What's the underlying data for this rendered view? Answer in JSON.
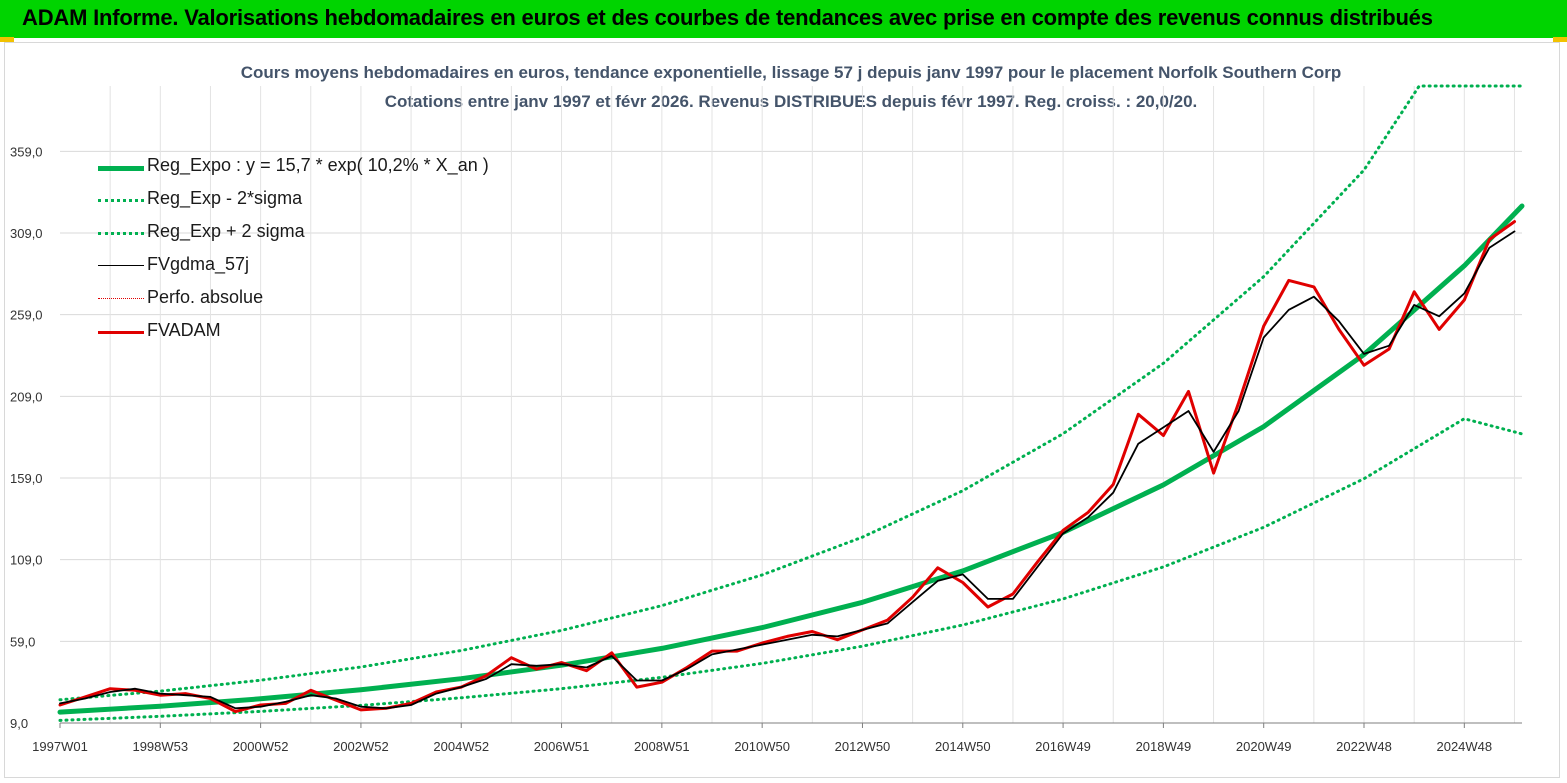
{
  "banner": {
    "title": "ADAM Informe. Valorisations hebdomadaires en euros et des courbes de tendances avec prise en compte des revenus connus distribués"
  },
  "chart_data": {
    "type": "line",
    "title": "Cours moyens hebdomadaires en euros, tendance exponentielle, lissage 57 j depuis janv 1997 pour le placement Norfolk Southern Corp",
    "subtitle": "Cotations entre janv 1997 et févr 2026. Revenus DISTRIBUES depuis févr 1997. Reg. croiss. : 20,0/20.",
    "xlabel": "",
    "ylabel": "",
    "x_range": [
      1997.0,
      2026.15
    ],
    "ylim": [
      9.0,
      399.0
    ],
    "y_ticks": [
      9.0,
      59.0,
      109.0,
      159.0,
      209.0,
      259.0,
      309.0,
      359.0
    ],
    "y_tick_labels": [
      "9,0",
      "59,0",
      "109,0",
      "159,0",
      "209,0",
      "259,0",
      "309,0",
      "359,0"
    ],
    "x_tick_labels": [
      "1997W01",
      "1998W53",
      "2000W52",
      "2002W52",
      "2004W52",
      "2006W51",
      "2008W51",
      "2010W50",
      "2012W50",
      "2014W50",
      "2016W49",
      "2018W49",
      "2020W49",
      "2022W48",
      "2024W48"
    ],
    "x_tick_years": [
      1997.0,
      1999.0,
      2001.0,
      2003.0,
      2005.0,
      2007.0,
      2009.0,
      2011.0,
      2013.0,
      2015.0,
      2017.0,
      2019.0,
      2021.0,
      2023.0,
      2025.0
    ],
    "grid": true,
    "legend_position": "top-left",
    "series": [
      {
        "name": "Reg_Expo : y = 15,7 * exp( 10,2% *  X_an )",
        "color": "#00b050",
        "style": "solid-thick",
        "x": [
          1997.0,
          1999.0,
          2001.0,
          2003.0,
          2005.0,
          2007.0,
          2009.0,
          2011.0,
          2013.0,
          2015.0,
          2017.0,
          2019.0,
          2021.0,
          2023.0,
          2025.0,
          2026.15
        ],
        "y": [
          15.7,
          19.3,
          23.8,
          29.3,
          36.1,
          44.4,
          54.7,
          67.4,
          82.9,
          102.1,
          125.7,
          154.8,
          190.5,
          234.6,
          288.9,
          325.5
        ]
      },
      {
        "name": "Reg_Exp - 2*sigma",
        "color": "#00b050",
        "style": "dotted",
        "x": [
          1997.0,
          1999.0,
          2001.0,
          2003.0,
          2005.0,
          2007.0,
          2009.0,
          2011.0,
          2013.0,
          2015.0,
          2017.0,
          2019.0,
          2021.0,
          2023.0,
          2025.0,
          2026.15
        ],
        "y": [
          10.6,
          13.1,
          16.1,
          19.8,
          24.4,
          30.0,
          37.0,
          45.5,
          56.0,
          69.0,
          85.0,
          104.6,
          128.8,
          158.6,
          195.3,
          186.0
        ]
      },
      {
        "name": "Reg_Exp + 2 sigma",
        "color": "#00b050",
        "style": "dotted",
        "x": [
          1997.0,
          1999.0,
          2001.0,
          2003.0,
          2005.0,
          2007.0,
          2009.0,
          2011.0,
          2013.0,
          2015.0,
          2017.0,
          2019.0,
          2021.0,
          2023.0,
          2024.1,
          2026.15
        ],
        "y": [
          23.2,
          28.5,
          35.2,
          43.3,
          53.4,
          65.7,
          80.9,
          99.7,
          122.8,
          151.2,
          186.1,
          229.2,
          282.3,
          347.6,
          399.0,
          399.0
        ]
      },
      {
        "name": "FVgdma_57j",
        "color": "#000000",
        "style": "solid",
        "x": [
          1997.0,
          1997.5,
          1998.0,
          1998.5,
          1999.0,
          1999.5,
          2000.0,
          2000.5,
          2001.0,
          2001.5,
          2002.0,
          2002.5,
          2003.0,
          2003.5,
          2004.0,
          2004.5,
          2005.0,
          2005.5,
          2006.0,
          2006.5,
          2007.0,
          2007.5,
          2008.0,
          2008.5,
          2009.0,
          2009.5,
          2010.0,
          2010.5,
          2011.0,
          2011.5,
          2012.0,
          2012.5,
          2013.0,
          2013.5,
          2014.0,
          2014.5,
          2015.0,
          2015.5,
          2016.0,
          2016.5,
          2017.0,
          2017.5,
          2018.0,
          2018.5,
          2019.0,
          2019.5,
          2020.0,
          2020.5,
          2021.0,
          2021.5,
          2022.0,
          2022.5,
          2023.0,
          2023.5,
          2024.0,
          2024.5,
          2025.0,
          2025.5,
          2026.0
        ],
        "y": [
          21,
          24,
          28,
          30,
          27,
          26,
          25,
          18,
          19,
          22,
          26,
          24,
          19,
          18,
          20,
          27,
          31,
          36,
          45,
          44,
          45,
          43,
          50,
          35,
          35,
          42,
          51,
          54,
          57,
          60,
          63,
          62,
          66,
          70,
          83,
          96,
          100,
          85,
          85,
          105,
          125,
          135,
          150,
          180,
          190,
          200,
          175,
          200,
          245,
          262,
          270,
          255,
          235,
          240,
          265,
          258,
          272,
          300,
          310
        ]
      },
      {
        "name": "Perfo. absolue",
        "color": "#e00000",
        "style": "dotted-thin",
        "x": [
          1997.0,
          2026.15
        ],
        "y": [
          null,
          null
        ]
      },
      {
        "name": "FVADAM",
        "color": "#e00000",
        "style": "solid-thick",
        "x": [
          1997.0,
          1997.5,
          1998.0,
          1998.5,
          1999.0,
          1999.5,
          2000.0,
          2000.5,
          2001.0,
          2001.5,
          2002.0,
          2002.5,
          2003.0,
          2003.5,
          2004.0,
          2004.5,
          2005.0,
          2005.5,
          2006.0,
          2006.5,
          2007.0,
          2007.5,
          2008.0,
          2008.5,
          2009.0,
          2009.5,
          2010.0,
          2010.5,
          2011.0,
          2011.5,
          2012.0,
          2012.5,
          2013.0,
          2013.5,
          2014.0,
          2014.5,
          2015.0,
          2015.5,
          2016.0,
          2016.5,
          2017.0,
          2017.5,
          2018.0,
          2018.5,
          2019.0,
          2019.5,
          2020.0,
          2020.5,
          2021.0,
          2021.5,
          2022.0,
          2022.5,
          2023.0,
          2023.5,
          2024.0,
          2024.5,
          2025.0,
          2025.5,
          2026.0
        ],
        "y": [
          20,
          25,
          30,
          29,
          26,
          27,
          24,
          16,
          20,
          21,
          29,
          23,
          17,
          18,
          21,
          28,
          31,
          38,
          49,
          42,
          46,
          41,
          52,
          31,
          34,
          43,
          53,
          53,
          58,
          62,
          65,
          60,
          66,
          72,
          86,
          104,
          95,
          80,
          88,
          108,
          127,
          138,
          155,
          198,
          185,
          212,
          162,
          205,
          252,
          280,
          276,
          250,
          228,
          238,
          273,
          250,
          268,
          305,
          316
        ]
      }
    ]
  }
}
